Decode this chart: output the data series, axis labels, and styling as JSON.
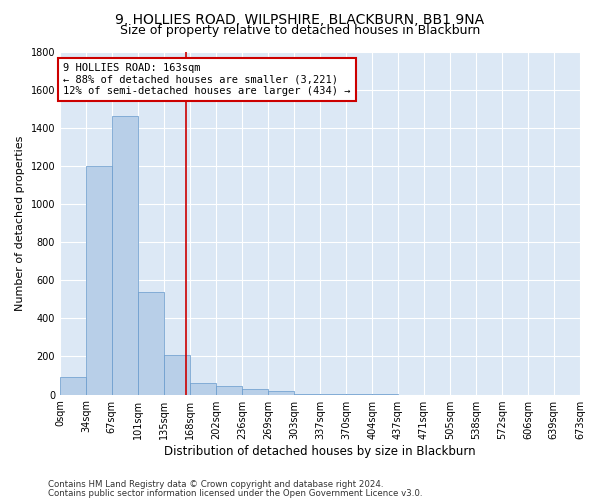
{
  "title1": "9, HOLLIES ROAD, WILPSHIRE, BLACKBURN, BB1 9NA",
  "title2": "Size of property relative to detached houses in Blackburn",
  "xlabel": "Distribution of detached houses by size in Blackburn",
  "ylabel": "Number of detached properties",
  "footnote1": "Contains HM Land Registry data © Crown copyright and database right 2024.",
  "footnote2": "Contains public sector information licensed under the Open Government Licence v3.0.",
  "bar_left_edges": [
    0,
    34,
    67,
    101,
    135,
    168,
    202,
    236,
    269,
    303,
    337,
    370,
    404,
    437,
    471,
    505,
    538,
    572,
    606,
    639
  ],
  "bar_labels": [
    "0sqm",
    "34sqm",
    "67sqm",
    "101sqm",
    "135sqm",
    "168sqm",
    "202sqm",
    "236sqm",
    "269sqm",
    "303sqm",
    "337sqm",
    "370sqm",
    "404sqm",
    "437sqm",
    "471sqm",
    "505sqm",
    "538sqm",
    "572sqm",
    "606sqm",
    "639sqm",
    "673sqm"
  ],
  "bar_values": [
    90,
    1200,
    1460,
    540,
    210,
    60,
    45,
    30,
    20,
    5,
    2,
    2,
    1,
    0,
    0,
    0,
    0,
    0,
    0,
    0
  ],
  "bar_color": "#b8cfe8",
  "bar_edge_color": "#6699cc",
  "ylim": [
    0,
    1800
  ],
  "yticks": [
    0,
    200,
    400,
    600,
    800,
    1000,
    1200,
    1400,
    1600,
    1800
  ],
  "xlim_max": 673,
  "vline_x": 163,
  "vline_color": "#cc0000",
  "annotation_text": "9 HOLLIES ROAD: 163sqm\n← 88% of detached houses are smaller (3,221)\n12% of semi-detached houses are larger (434) →",
  "annotation_box_color": "#cc0000",
  "background_color": "#ffffff",
  "plot_bg_color": "#dce8f5",
  "grid_color": "#ffffff",
  "title1_fontsize": 10,
  "title2_fontsize": 9,
  "xlabel_fontsize": 8.5,
  "ylabel_fontsize": 8,
  "tick_fontsize": 7,
  "annotation_fontsize": 7.5,
  "footnote_fontsize": 6.2
}
